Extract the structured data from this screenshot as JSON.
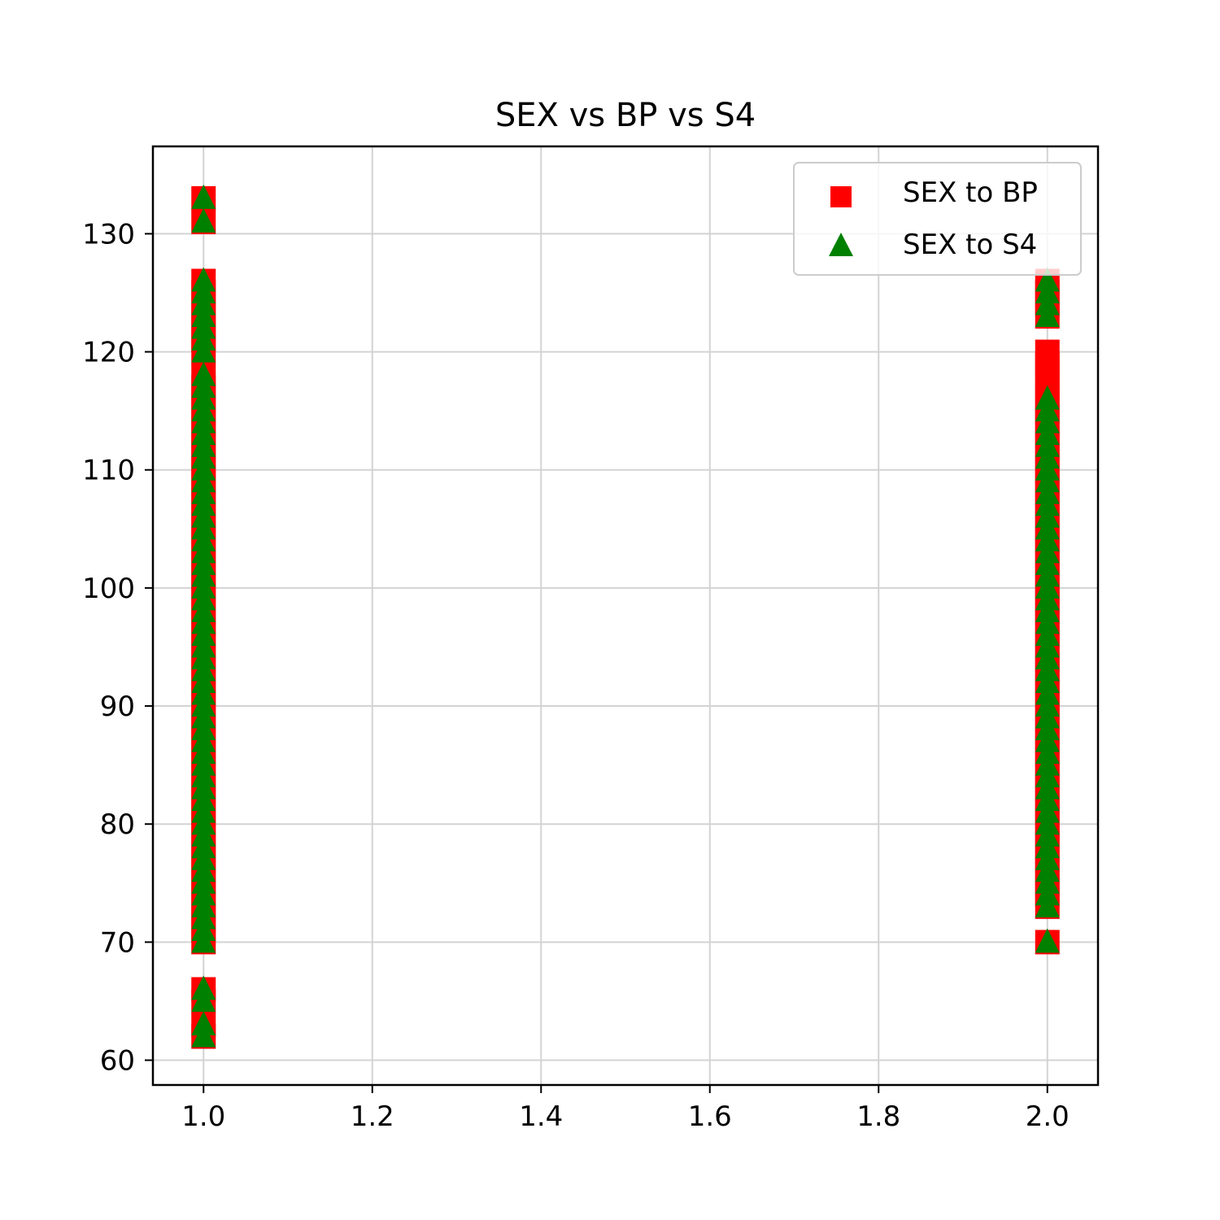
{
  "chart_data": {
    "type": "scatter",
    "title": "SEX vs BP vs S4",
    "xlabel": "",
    "ylabel": "",
    "xlim": [
      0.94,
      2.06
    ],
    "ylim": [
      57.9,
      137.4
    ],
    "xticks": [
      1.0,
      1.2,
      1.4,
      1.6,
      1.8,
      2.0
    ],
    "xtick_labels": [
      "1.0",
      "1.2",
      "1.4",
      "1.6",
      "1.8",
      "2.0"
    ],
    "yticks": [
      60,
      70,
      80,
      90,
      100,
      110,
      120,
      130
    ],
    "ytick_labels": [
      "60",
      "70",
      "80",
      "90",
      "100",
      "110",
      "120",
      "130"
    ],
    "grid": true,
    "legend_position": "top-right",
    "series": [
      {
        "name": "SEX to BP",
        "marker": "square",
        "color": "#ff0000",
        "points": [
          [
            1,
            62
          ],
          [
            1,
            63
          ],
          [
            1,
            65
          ],
          [
            1,
            66
          ],
          [
            1,
            70
          ],
          [
            1,
            71
          ],
          [
            1,
            72
          ],
          [
            1,
            73
          ],
          [
            1,
            74
          ],
          [
            1,
            75
          ],
          [
            1,
            76
          ],
          [
            1,
            77
          ],
          [
            1,
            78
          ],
          [
            1,
            79
          ],
          [
            1,
            80
          ],
          [
            1,
            81
          ],
          [
            1,
            82
          ],
          [
            1,
            83
          ],
          [
            1,
            84
          ],
          [
            1,
            85
          ],
          [
            1,
            86
          ],
          [
            1,
            87
          ],
          [
            1,
            88
          ],
          [
            1,
            89
          ],
          [
            1,
            90
          ],
          [
            1,
            91
          ],
          [
            1,
            92
          ],
          [
            1,
            93
          ],
          [
            1,
            94
          ],
          [
            1,
            95
          ],
          [
            1,
            96
          ],
          [
            1,
            97
          ],
          [
            1,
            98
          ],
          [
            1,
            99
          ],
          [
            1,
            100
          ],
          [
            1,
            101
          ],
          [
            1,
            102
          ],
          [
            1,
            103
          ],
          [
            1,
            104
          ],
          [
            1,
            105
          ],
          [
            1,
            106
          ],
          [
            1,
            107
          ],
          [
            1,
            108
          ],
          [
            1,
            109
          ],
          [
            1,
            110
          ],
          [
            1,
            111
          ],
          [
            1,
            112
          ],
          [
            1,
            113
          ],
          [
            1,
            114
          ],
          [
            1,
            115
          ],
          [
            1,
            116
          ],
          [
            1,
            117
          ],
          [
            1,
            118
          ],
          [
            1,
            120
          ],
          [
            1,
            121
          ],
          [
            1,
            122
          ],
          [
            1,
            123
          ],
          [
            1,
            124
          ],
          [
            1,
            125
          ],
          [
            1,
            126
          ],
          [
            1,
            131
          ],
          [
            1,
            133
          ],
          [
            2,
            70
          ],
          [
            2,
            73
          ],
          [
            2,
            74
          ],
          [
            2,
            75
          ],
          [
            2,
            76
          ],
          [
            2,
            77
          ],
          [
            2,
            78
          ],
          [
            2,
            79
          ],
          [
            2,
            80
          ],
          [
            2,
            81
          ],
          [
            2,
            82
          ],
          [
            2,
            83
          ],
          [
            2,
            84
          ],
          [
            2,
            85
          ],
          [
            2,
            86
          ],
          [
            2,
            87
          ],
          [
            2,
            88
          ],
          [
            2,
            89
          ],
          [
            2,
            90
          ],
          [
            2,
            91
          ],
          [
            2,
            92
          ],
          [
            2,
            93
          ],
          [
            2,
            94
          ],
          [
            2,
            95
          ],
          [
            2,
            96
          ],
          [
            2,
            97
          ],
          [
            2,
            98
          ],
          [
            2,
            99
          ],
          [
            2,
            100
          ],
          [
            2,
            101
          ],
          [
            2,
            102
          ],
          [
            2,
            103
          ],
          [
            2,
            104
          ],
          [
            2,
            105
          ],
          [
            2,
            106
          ],
          [
            2,
            107
          ],
          [
            2,
            108
          ],
          [
            2,
            109
          ],
          [
            2,
            110
          ],
          [
            2,
            111
          ],
          [
            2,
            112
          ],
          [
            2,
            113
          ],
          [
            2,
            114
          ],
          [
            2,
            115
          ],
          [
            2,
            116
          ],
          [
            2,
            117
          ],
          [
            2,
            118
          ],
          [
            2,
            119
          ],
          [
            2,
            120
          ],
          [
            2,
            123
          ],
          [
            2,
            124
          ],
          [
            2,
            125
          ],
          [
            2,
            126
          ]
        ]
      },
      {
        "name": "SEX to S4",
        "marker": "triangle",
        "color": "#008000",
        "points": [
          [
            1,
            62
          ],
          [
            1,
            63
          ],
          [
            1,
            65
          ],
          [
            1,
            66
          ],
          [
            1,
            70
          ],
          [
            1,
            71
          ],
          [
            1,
            72
          ],
          [
            1,
            73
          ],
          [
            1,
            74
          ],
          [
            1,
            75
          ],
          [
            1,
            76
          ],
          [
            1,
            77
          ],
          [
            1,
            78
          ],
          [
            1,
            79
          ],
          [
            1,
            80
          ],
          [
            1,
            81
          ],
          [
            1,
            82
          ],
          [
            1,
            83
          ],
          [
            1,
            84
          ],
          [
            1,
            85
          ],
          [
            1,
            86
          ],
          [
            1,
            87
          ],
          [
            1,
            88
          ],
          [
            1,
            89
          ],
          [
            1,
            90
          ],
          [
            1,
            91
          ],
          [
            1,
            92
          ],
          [
            1,
            93
          ],
          [
            1,
            94
          ],
          [
            1,
            95
          ],
          [
            1,
            96
          ],
          [
            1,
            97
          ],
          [
            1,
            98
          ],
          [
            1,
            99
          ],
          [
            1,
            100
          ],
          [
            1,
            101
          ],
          [
            1,
            102
          ],
          [
            1,
            103
          ],
          [
            1,
            104
          ],
          [
            1,
            105
          ],
          [
            1,
            106
          ],
          [
            1,
            107
          ],
          [
            1,
            108
          ],
          [
            1,
            109
          ],
          [
            1,
            110
          ],
          [
            1,
            111
          ],
          [
            1,
            112
          ],
          [
            1,
            113
          ],
          [
            1,
            114
          ],
          [
            1,
            115
          ],
          [
            1,
            116
          ],
          [
            1,
            117
          ],
          [
            1,
            118
          ],
          [
            1,
            120
          ],
          [
            1,
            121
          ],
          [
            1,
            122
          ],
          [
            1,
            123
          ],
          [
            1,
            124
          ],
          [
            1,
            125
          ],
          [
            1,
            126
          ],
          [
            1,
            131
          ],
          [
            1,
            133
          ],
          [
            2,
            70
          ],
          [
            2,
            73
          ],
          [
            2,
            74
          ],
          [
            2,
            75
          ],
          [
            2,
            76
          ],
          [
            2,
            77
          ],
          [
            2,
            78
          ],
          [
            2,
            79
          ],
          [
            2,
            80
          ],
          [
            2,
            81
          ],
          [
            2,
            82
          ],
          [
            2,
            83
          ],
          [
            2,
            84
          ],
          [
            2,
            85
          ],
          [
            2,
            86
          ],
          [
            2,
            87
          ],
          [
            2,
            88
          ],
          [
            2,
            89
          ],
          [
            2,
            90
          ],
          [
            2,
            91
          ],
          [
            2,
            92
          ],
          [
            2,
            93
          ],
          [
            2,
            94
          ],
          [
            2,
            95
          ],
          [
            2,
            96
          ],
          [
            2,
            97
          ],
          [
            2,
            98
          ],
          [
            2,
            99
          ],
          [
            2,
            100
          ],
          [
            2,
            101
          ],
          [
            2,
            102
          ],
          [
            2,
            103
          ],
          [
            2,
            104
          ],
          [
            2,
            105
          ],
          [
            2,
            106
          ],
          [
            2,
            107
          ],
          [
            2,
            108
          ],
          [
            2,
            109
          ],
          [
            2,
            110
          ],
          [
            2,
            111
          ],
          [
            2,
            112
          ],
          [
            2,
            113
          ],
          [
            2,
            114
          ],
          [
            2,
            115
          ],
          [
            2,
            116
          ],
          [
            2,
            123
          ],
          [
            2,
            124
          ],
          [
            2,
            125
          ],
          [
            2,
            126
          ]
        ]
      }
    ]
  }
}
